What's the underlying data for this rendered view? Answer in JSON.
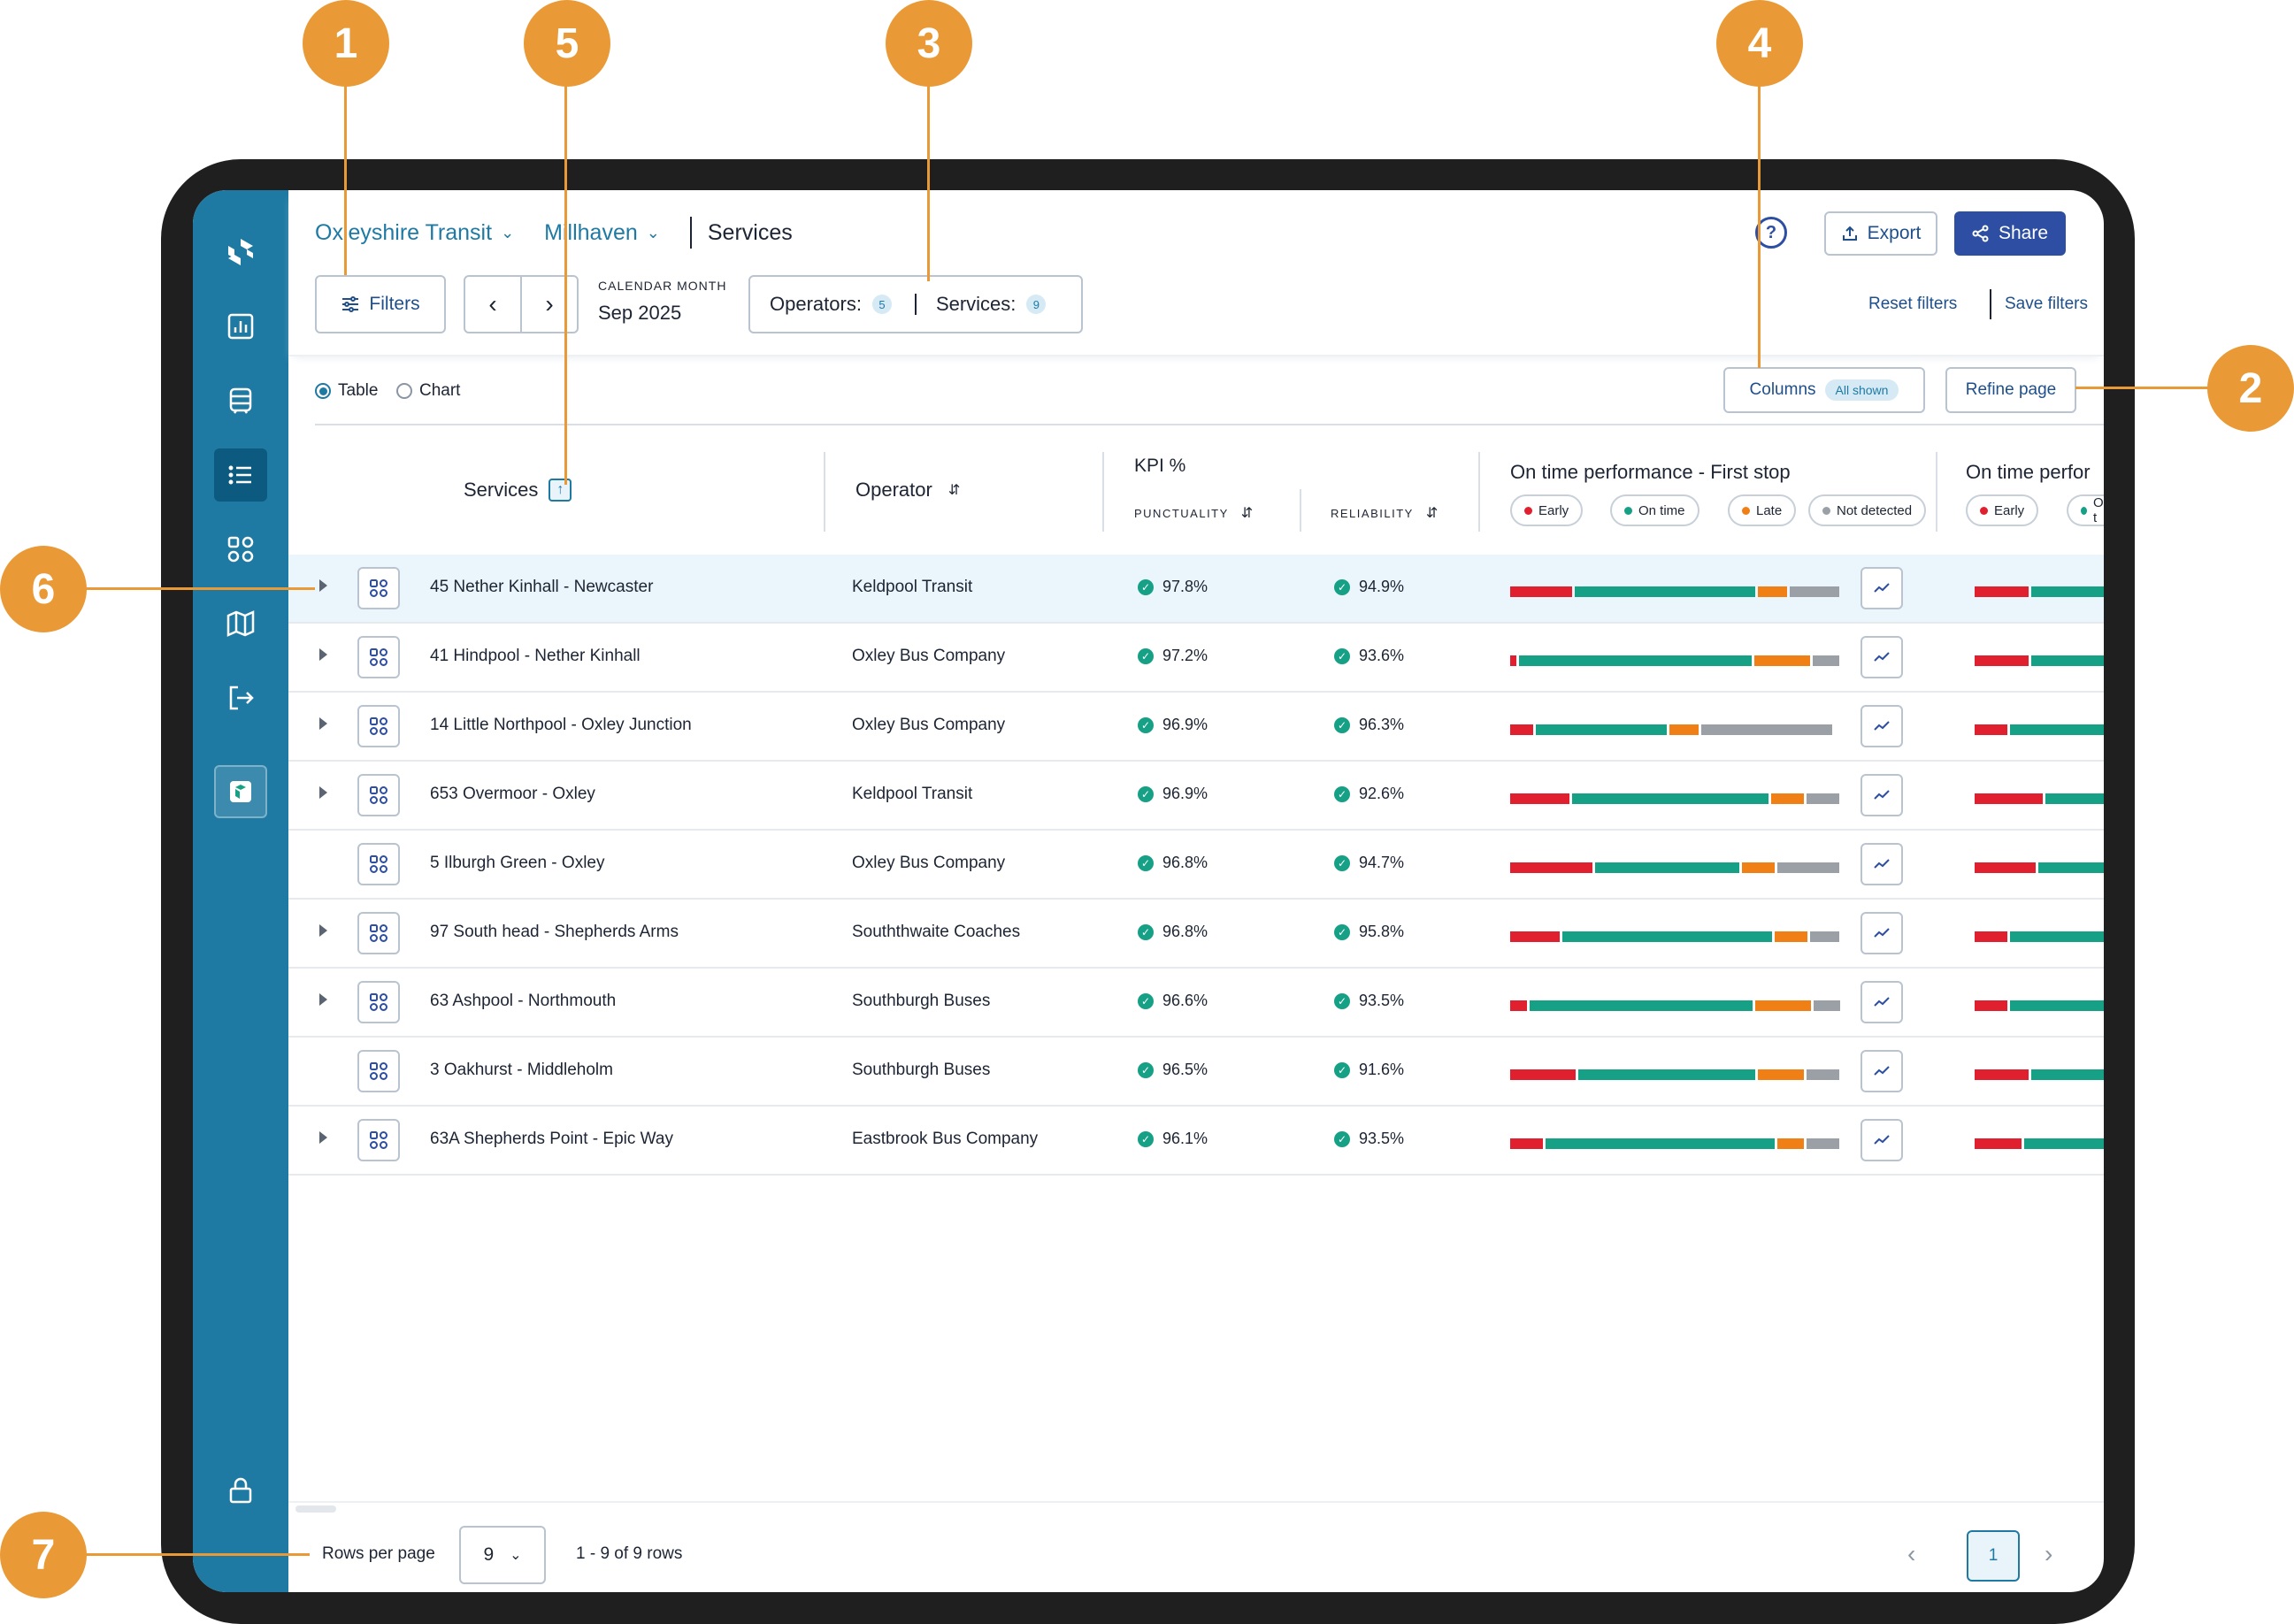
{
  "app": {
    "breadcrumbs": [
      {
        "label": "Oxleyshire Transit"
      },
      {
        "label": "Millhaven"
      }
    ],
    "current_page": "Services"
  },
  "toolbar": {
    "filters_label": "Filters",
    "calendar_label": "CALENDAR MONTH",
    "calendar_value": "Sep 2025",
    "operators_label": "Operators:",
    "operators_count": "5",
    "services_label": "Services:",
    "services_count": "9",
    "export_label": "Export",
    "share_label": "Share",
    "help_glyph": "?",
    "reset_filters": "Reset filters",
    "save_filters": "Save filters"
  },
  "view": {
    "table_label": "Table",
    "chart_label": "Chart",
    "selected": "Table",
    "columns_label": "Columns",
    "columns_badge": "All shown",
    "refine_label": "Refine page"
  },
  "table": {
    "headers": {
      "services": "Services",
      "operator": "Operator",
      "kpi": "KPI %",
      "punctuality": "PUNCTUALITY",
      "reliability": "RELIABILITY",
      "otp_first": "On time performance - First stop",
      "otp_second": "On time perfor"
    },
    "legend": [
      {
        "label": "Early",
        "color": "#e0202e"
      },
      {
        "label": "On time",
        "color": "#16a085"
      },
      {
        "label": "Late",
        "color": "#f07f16"
      },
      {
        "label": "Not detected",
        "color": "#9aa0a6"
      }
    ],
    "legend_partial": [
      {
        "label": "Early",
        "color": "#e0202e"
      },
      {
        "label": "On t",
        "color": "#16a085"
      }
    ],
    "rows": [
      {
        "service": "45 Nether Kinhall - Newcaster",
        "operator": "Keldpool Transit",
        "punctuality": "97.8%",
        "reliability": "94.9%",
        "expandable": true,
        "highlight": true,
        "otp": [
          0.19,
          0.55,
          0.09,
          0.15
        ],
        "otp2": [
          0.38,
          0.62
        ]
      },
      {
        "service": "41 Hindpool - Nether Kinhall",
        "operator": "Oxley Bus Company",
        "punctuality": "97.2%",
        "reliability": "93.6%",
        "expandable": true,
        "highlight": false,
        "otp": [
          0.02,
          0.71,
          0.17,
          0.08
        ],
        "otp2": [
          0.38,
          0.62
        ]
      },
      {
        "service": "14 Little Northpool - Oxley Junction",
        "operator": "Oxley Bus Company",
        "punctuality": "96.9%",
        "reliability": "96.3%",
        "expandable": true,
        "highlight": false,
        "otp": [
          0.07,
          0.4,
          0.09,
          0.4
        ],
        "otp2": [
          0.23,
          0.77
        ]
      },
      {
        "service": "653 Overmoor - Oxley",
        "operator": "Keldpool Transit",
        "punctuality": "96.9%",
        "reliability": "92.6%",
        "expandable": true,
        "highlight": false,
        "otp": [
          0.18,
          0.6,
          0.1,
          0.1
        ],
        "otp2": [
          0.48,
          0.52
        ]
      },
      {
        "service": "5 Ilburgh Green - Oxley",
        "operator": "Oxley Bus Company",
        "punctuality": "96.8%",
        "reliability": "94.7%",
        "expandable": false,
        "highlight": false,
        "otp": [
          0.25,
          0.44,
          0.1,
          0.19
        ],
        "otp2": [
          0.43,
          0.57
        ]
      },
      {
        "service": "97 South head - Shepherds Arms",
        "operator": "Souththwaite Coaches",
        "punctuality": "96.8%",
        "reliability": "95.8%",
        "expandable": true,
        "highlight": false,
        "otp": [
          0.15,
          0.64,
          0.1,
          0.09
        ],
        "otp2": [
          0.23,
          0.77
        ]
      },
      {
        "service": "63 Ashpool - Northmouth",
        "operator": "Southburgh Buses",
        "punctuality": "96.6%",
        "reliability": "93.5%",
        "expandable": true,
        "highlight": false,
        "otp": [
          0.05,
          0.68,
          0.17,
          0.08
        ],
        "otp2": [
          0.23,
          0.77
        ]
      },
      {
        "service": "3 Oakhurst - Middleholm",
        "operator": "Southburgh Buses",
        "punctuality": "96.5%",
        "reliability": "91.6%",
        "expandable": false,
        "highlight": false,
        "otp": [
          0.2,
          0.54,
          0.14,
          0.1
        ],
        "otp2": [
          0.38,
          0.62
        ]
      },
      {
        "service": "63A Shepherds Point - Epic Way",
        "operator": "Eastbrook Bus Company",
        "punctuality": "96.1%",
        "reliability": "93.5%",
        "expandable": true,
        "highlight": false,
        "otp": [
          0.1,
          0.7,
          0.08,
          0.1
        ],
        "otp2": [
          0.33,
          0.67
        ]
      }
    ]
  },
  "footer": {
    "rows_per_page_label": "Rows per page",
    "rows_per_page_value": "9",
    "range_text": "1 - 9 of 9 rows",
    "current_page": "1"
  },
  "callouts": [
    "1",
    "2",
    "3",
    "4",
    "5",
    "6",
    "7"
  ],
  "colors": {
    "sidebar": "#1f7aa3",
    "accent": "#2d4ea2",
    "callout": "#e99a36",
    "early": "#e0202e",
    "on_time": "#16a085",
    "late": "#f07f16",
    "not_detected": "#9aa0a6"
  }
}
